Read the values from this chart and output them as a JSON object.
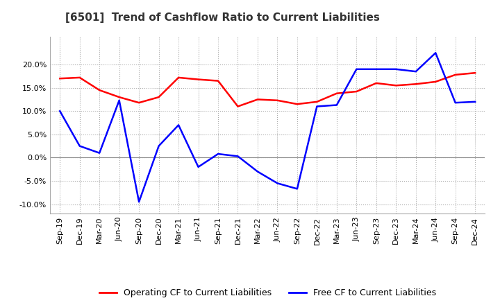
{
  "title": "[6501]  Trend of Cashflow Ratio to Current Liabilities",
  "x_labels": [
    "Sep-19",
    "Dec-19",
    "Mar-20",
    "Jun-20",
    "Sep-20",
    "Dec-20",
    "Mar-21",
    "Jun-21",
    "Sep-21",
    "Dec-21",
    "Mar-22",
    "Jun-22",
    "Sep-22",
    "Dec-22",
    "Mar-23",
    "Jun-23",
    "Sep-23",
    "Dec-23",
    "Mar-24",
    "Jun-24",
    "Sep-24",
    "Dec-24"
  ],
  "operating_cf": [
    17.0,
    17.2,
    14.5,
    13.0,
    11.8,
    13.0,
    17.2,
    16.8,
    16.5,
    11.0,
    12.5,
    12.3,
    11.5,
    12.0,
    13.8,
    14.2,
    16.0,
    15.5,
    15.8,
    16.3,
    17.8,
    18.2
  ],
  "free_cf": [
    10.0,
    2.5,
    1.0,
    12.3,
    -9.5,
    2.5,
    7.0,
    -2.0,
    0.8,
    0.3,
    -3.0,
    -5.5,
    -6.7,
    11.0,
    11.3,
    19.0,
    19.0,
    19.0,
    18.5,
    22.5,
    11.8,
    12.0
  ],
  "operating_color": "#ff0000",
  "free_color": "#0000ff",
  "ylim": [
    -12,
    26
  ],
  "yticks": [
    -10,
    -5,
    0,
    5,
    10,
    15,
    20
  ],
  "background_color": "#ffffff",
  "plot_background": "#ffffff",
  "legend_op": "Operating CF to Current Liabilities",
  "legend_free": "Free CF to Current Liabilities"
}
